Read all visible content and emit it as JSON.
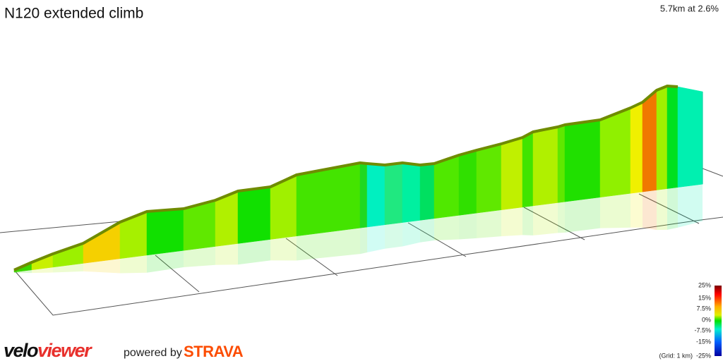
{
  "header": {
    "title": "N120 extended climb",
    "summary": "5.7km at 2.6%"
  },
  "legend": {
    "labels": [
      "25%",
      "15%",
      "7.5%",
      "0%",
      "-7.5%",
      "-15%",
      "-25%"
    ],
    "grid_note": "(Grid: 1 km)"
  },
  "footer": {
    "brand_a": "velo",
    "brand_b": "viewer",
    "powered": "powered by",
    "partner": "STRAVA"
  }
}
